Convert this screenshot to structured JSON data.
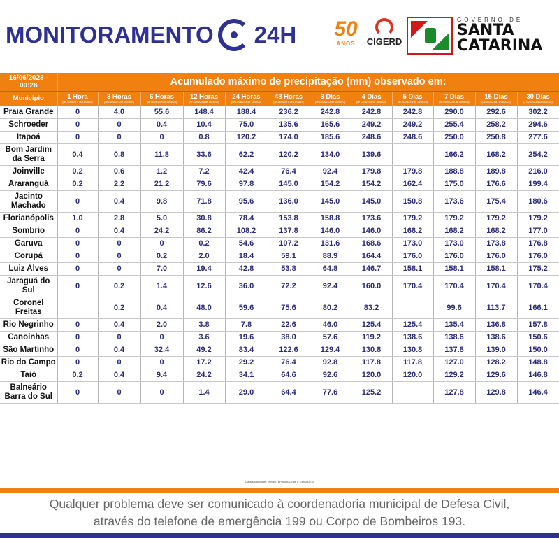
{
  "header": {
    "brand_left": "MONITORAMENTO",
    "brand_right": "24H",
    "fifty": "50",
    "fifty_sub": "ANOS",
    "cigerd": "CIGERD",
    "gov_top": "GOVERNO DE",
    "gov_line1": "SANTA",
    "gov_line2": "CATARINA"
  },
  "table": {
    "timestamp": "16/06/2023 - 00:28",
    "title": "Acumulado máximo de precipitação (mm) observado em:",
    "municipio_header": "Municipio",
    "columns": [
      {
        "label": "1 Hora",
        "sub": "(de 15/06/23 a de 16/06/23)"
      },
      {
        "label": "3 Horas",
        "sub": "(de 15/06/23 a de 16/06/23)"
      },
      {
        "label": "6 Horas",
        "sub": "(de 15/06/23 a de 16/06/23)"
      },
      {
        "label": "12 Horas",
        "sub": "(de 15/06/23 a de 16/06/23)"
      },
      {
        "label": "24 Horas",
        "sub": "(de 15/06/23 a de 16/06/23)"
      },
      {
        "label": "48 Horas",
        "sub": "(de 14/06/23 a de 16/06/23)"
      },
      {
        "label": "3 Dias",
        "sub": "(de 13/06/23 a de 16/06/23)"
      },
      {
        "label": "4 Dias",
        "sub": "(de 12/06/23 a de 16/06/23)"
      },
      {
        "label": "5 Dias",
        "sub": "(de 11/06/23 a de 16/06/23)"
      },
      {
        "label": "7 Dias",
        "sub": "(de 09/06/23 a de 16/06/23)"
      },
      {
        "label": "15 Dias",
        "sub": "(01/06/2023 a 16/06/2023)"
      },
      {
        "label": "30 Dias",
        "sub": "(17/05/2023 a 16/06/2023)"
      }
    ],
    "rows": [
      {
        "name": "Praia Grande",
        "values": [
          "0",
          "4.0",
          "55.6",
          "148.4",
          "188.4",
          "236.2",
          "242.8",
          "242.8",
          "242.8",
          "290.0",
          "292.6",
          "302.2"
        ]
      },
      {
        "name": "Schroeder",
        "values": [
          "0",
          "0",
          "0.4",
          "10.4",
          "75.0",
          "135.6",
          "165.6",
          "249.2",
          "249.2",
          "255.4",
          "258.2",
          "294.6"
        ]
      },
      {
        "name": "Itapoá",
        "values": [
          "0",
          "0",
          "0",
          "0.8",
          "120.2",
          "174.0",
          "185.6",
          "248.6",
          "248.6",
          "250.0",
          "250.8",
          "277.6"
        ]
      },
      {
        "name": "Bom Jardim da Serra",
        "values": [
          "0.4",
          "0.8",
          "11.8",
          "33.6",
          "62.2",
          "120.2",
          "134.0",
          "139.6",
          "",
          "166.2",
          "168.2",
          "254.2"
        ]
      },
      {
        "name": "Joinville",
        "values": [
          "0.2",
          "0.6",
          "1.2",
          "7.2",
          "42.4",
          "76.4",
          "92.4",
          "179.8",
          "179.8",
          "188.8",
          "189.8",
          "216.0"
        ]
      },
      {
        "name": "Araranguá",
        "values": [
          "0.2",
          "2.2",
          "21.2",
          "79.6",
          "97.8",
          "145.0",
          "154.2",
          "154.2",
          "162.4",
          "175.0",
          "176.6",
          "199.4"
        ]
      },
      {
        "name": "Jacinto Machado",
        "values": [
          "0",
          "0.4",
          "9.8",
          "71.8",
          "95.6",
          "136.0",
          "145.0",
          "145.0",
          "150.8",
          "173.6",
          "175.4",
          "180.6"
        ]
      },
      {
        "name": "Florianópolis",
        "values": [
          "1.0",
          "2.8",
          "5.0",
          "30.8",
          "78.4",
          "153.8",
          "158.8",
          "173.6",
          "179.2",
          "179.2",
          "179.2",
          "179.2"
        ]
      },
      {
        "name": "Sombrio",
        "values": [
          "0",
          "0.4",
          "24.2",
          "86.2",
          "108.2",
          "137.8",
          "146.0",
          "146.0",
          "168.2",
          "168.2",
          "168.2",
          "177.0"
        ]
      },
      {
        "name": "Garuva",
        "values": [
          "0",
          "0",
          "0",
          "0.2",
          "54.6",
          "107.2",
          "131.6",
          "168.6",
          "173.0",
          "173.0",
          "173.8",
          "176.8"
        ]
      },
      {
        "name": "Corupá",
        "values": [
          "0",
          "0",
          "0.2",
          "2.0",
          "18.4",
          "59.1",
          "88.9",
          "164.4",
          "176.0",
          "176.0",
          "176.0",
          "176.0"
        ]
      },
      {
        "name": "Luiz Alves",
        "values": [
          "0",
          "0",
          "7.0",
          "19.4",
          "42.8",
          "53.8",
          "64.8",
          "146.7",
          "158.1",
          "158.1",
          "158.1",
          "175.2"
        ]
      },
      {
        "name": "Jaraguá do Sul",
        "values": [
          "0",
          "0.2",
          "1.4",
          "12.6",
          "36.0",
          "72.2",
          "92.4",
          "160.0",
          "170.4",
          "170.4",
          "170.4",
          "170.4"
        ]
      },
      {
        "name": "Coronel Freitas",
        "values": [
          "",
          "0.2",
          "0.4",
          "48.0",
          "59.6",
          "75.6",
          "80.2",
          "83.2",
          "",
          "99.6",
          "113.7",
          "166.1"
        ]
      },
      {
        "name": "Rio Negrinho",
        "values": [
          "0",
          "0.4",
          "2.0",
          "3.8",
          "7.8",
          "22.6",
          "46.0",
          "125.4",
          "125.4",
          "135.4",
          "136.8",
          "157.8"
        ]
      },
      {
        "name": "Canoinhas",
        "values": [
          "0",
          "0",
          "0",
          "3.6",
          "19.6",
          "38.0",
          "57.6",
          "119.2",
          "138.6",
          "138.6",
          "138.6",
          "150.6"
        ]
      },
      {
        "name": "São Martinho",
        "values": [
          "0",
          "0.4",
          "32.4",
          "49.2",
          "83.4",
          "122.6",
          "129.4",
          "130.8",
          "130.8",
          "137.8",
          "139.0",
          "150.0"
        ]
      },
      {
        "name": "Rio do Campo",
        "values": [
          "0",
          "0",
          "0",
          "17.2",
          "29.2",
          "76.4",
          "92.8",
          "117.8",
          "117.8",
          "127.0",
          "128.2",
          "148.8"
        ]
      },
      {
        "name": "Taió",
        "values": [
          "0.2",
          "0.4",
          "9.4",
          "24.2",
          "34.1",
          "64.6",
          "92.6",
          "120.0",
          "120.0",
          "129.2",
          "129.6",
          "146.8"
        ]
      },
      {
        "name": "Balneário Barra do Sul",
        "values": [
          "0",
          "0",
          "0",
          "1.4",
          "29.0",
          "64.4",
          "77.6",
          "125.2",
          "",
          "127.8",
          "129.8",
          "146.4"
        ]
      }
    ]
  },
  "source": "Dados coletados: INMET, EPAGRI/Ciram e CEMADEN",
  "footer": {
    "line1": "Qualquer problema deve ser comunicado à coordenadoria municipal de Defesa Civil,",
    "line2": "através do telefone de emergência 199 ou Corpo de Bombeiros 193."
  }
}
